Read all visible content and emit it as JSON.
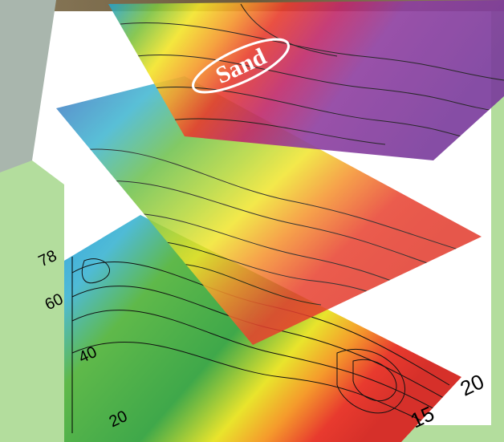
{
  "label": "Sand",
  "axis_labels": {
    "left": [
      "78",
      "60",
      "40",
      "20"
    ],
    "bottom": [
      "15",
      "20"
    ]
  }
}
